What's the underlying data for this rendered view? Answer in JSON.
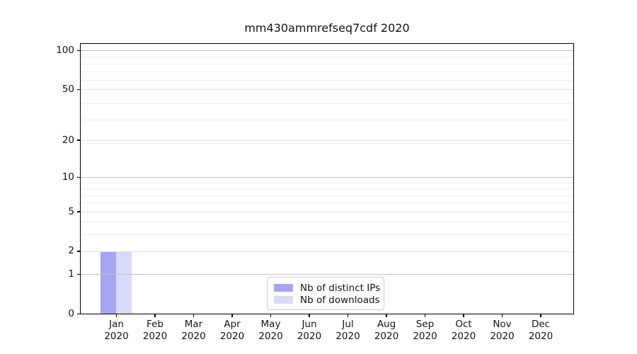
{
  "chart_data": {
    "type": "bar",
    "title": "mm430ammrefseq7cdf 2020",
    "categories": [
      "Jan 2020",
      "Feb 2020",
      "Mar 2020",
      "Apr 2020",
      "May 2020",
      "Jun 2020",
      "Jul 2020",
      "Aug 2020",
      "Sep 2020",
      "Oct 2020",
      "Nov 2020",
      "Dec 2020"
    ],
    "series": [
      {
        "name": "Nb of distinct IPs",
        "color": "#a5a5f2",
        "values": [
          2,
          0,
          0,
          0,
          0,
          0,
          0,
          0,
          0,
          0,
          0,
          0
        ]
      },
      {
        "name": "Nb of downloads",
        "color": "#d9d9f8",
        "values": [
          2,
          0,
          0,
          0,
          0,
          0,
          0,
          0,
          0,
          0,
          0,
          0
        ]
      }
    ],
    "xlabel": "",
    "ylabel": "",
    "yscale": "log1p",
    "yticks": [
      0,
      1,
      2,
      5,
      10,
      20,
      50,
      100
    ],
    "ylim": [
      0,
      114
    ],
    "grid": true,
    "legend_position": "lower center",
    "colors": {
      "major_grid": "#c1c1c1",
      "light_grid": "#e3e3e3",
      "minor_grid": "#eeeeee",
      "spine": "#000000",
      "text": "#141414"
    }
  }
}
